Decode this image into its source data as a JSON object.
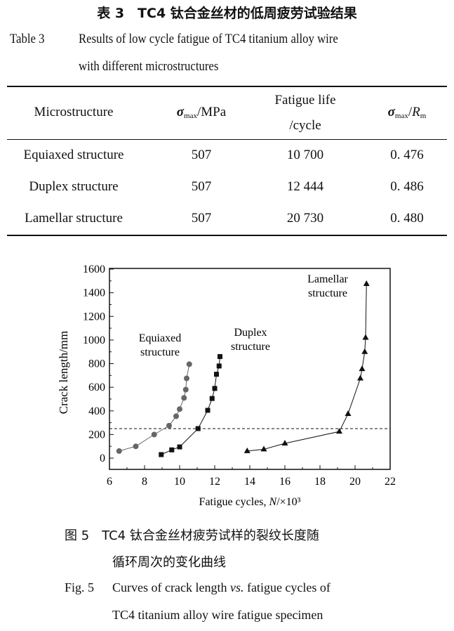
{
  "table": {
    "caption_cn": "表 3　TC4 钛合金丝材的低周疲劳试验结果",
    "caption_en_label": "Table 3",
    "caption_en_line1": "Results of low cycle fatigue of TC4 titanium alloy wire",
    "caption_en_line2": "with different microstructures",
    "headers": {
      "col1": "Microstructure",
      "col2_sym": "σ",
      "col2_sub": "max",
      "col2_unit": "/MPa",
      "col3_line1": "Fatigue life",
      "col3_line2": "/cycle",
      "col4_sym": "σ",
      "col4_sub": "max",
      "col4_mid": "/",
      "col4_r": "R",
      "col4_rsub": "m"
    },
    "rows": [
      {
        "microstructure": "Equiaxed structure",
        "sigma_max": "507",
        "fatigue_life": "10 700",
        "ratio": "0. 476"
      },
      {
        "microstructure": "Duplex structure",
        "sigma_max": "507",
        "fatigue_life": "12 444",
        "ratio": "0. 486"
      },
      {
        "microstructure": "Lamellar structure",
        "sigma_max": "507",
        "fatigue_life": "20 730",
        "ratio": "0. 480"
      }
    ]
  },
  "chart_data": {
    "type": "line",
    "xlabel": "Fatigue cycles, N/×10³",
    "ylabel": "Crack length/mm",
    "xlim": [
      6,
      22
    ],
    "ylim": [
      -100,
      1650
    ],
    "xticks": [
      6,
      8,
      10,
      12,
      14,
      16,
      18,
      20,
      22
    ],
    "yticks": [
      0,
      200,
      400,
      600,
      800,
      1000,
      1200,
      1400,
      1600
    ],
    "grid": false,
    "reference_line_y": 250,
    "series": [
      {
        "name": "Equiaxed structure",
        "label_line1": "Equiaxed",
        "label_line2": "structure",
        "marker": "circle",
        "color": "#666666",
        "x": [
          6.55,
          7.5,
          8.55,
          9.4,
          9.8,
          10.0,
          10.25,
          10.35,
          10.4,
          10.55
        ],
        "y": [
          60,
          100,
          200,
          275,
          355,
          415,
          510,
          580,
          675,
          795
        ]
      },
      {
        "name": "Duplex structure",
        "label_line1": "Duplex",
        "label_line2": "structure",
        "marker": "square",
        "color": "#111111",
        "x": [
          8.95,
          9.55,
          10.0,
          11.05,
          11.6,
          11.85,
          12.0,
          12.1,
          12.25,
          12.3
        ],
        "y": [
          30,
          70,
          95,
          250,
          405,
          505,
          590,
          710,
          780,
          860
        ]
      },
      {
        "name": "Lamellar structure",
        "label_line1": "Lamellar",
        "label_line2": "structure",
        "marker": "triangle",
        "color": "#111111",
        "x": [
          13.85,
          14.8,
          16.0,
          19.1,
          19.6,
          20.3,
          20.4,
          20.55,
          20.6,
          20.65
        ],
        "y": [
          60,
          75,
          125,
          225,
          375,
          675,
          755,
          900,
          1020,
          1475
        ]
      }
    ]
  },
  "figure": {
    "caption_cn_line1": "图 5　TC4 钛合金丝材疲劳试样的裂纹长度随",
    "caption_cn_line2": "循环周次的变化曲线",
    "caption_en_label": "Fig. 5",
    "caption_en_pre": "Curves of crack length ",
    "caption_en_vs": "vs.",
    "caption_en_post": " fatigue cycles of",
    "caption_en_line2": "TC4 titanium alloy wire fatigue specimen"
  }
}
